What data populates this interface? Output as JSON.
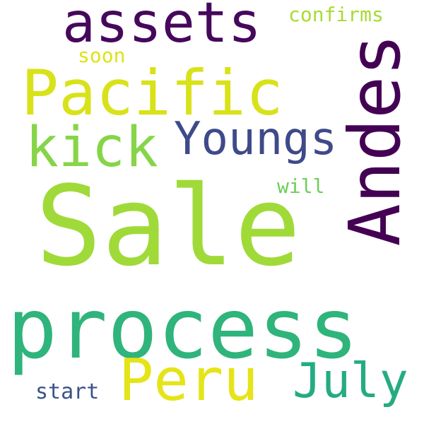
{
  "words": {
    "sale": {
      "text": "Sale",
      "color": "#a0da39"
    },
    "process": {
      "text": "process",
      "color": "#2fb47c"
    },
    "pacific": {
      "text": "Pacific",
      "color": "#d8e219"
    },
    "andes": {
      "text": "Andes",
      "color": "#440154"
    },
    "assets": {
      "text": "assets",
      "color": "#46085c"
    },
    "kick": {
      "text": "kick",
      "color": "#86d549"
    },
    "peru": {
      "text": "Peru",
      "color": "#e5e419"
    },
    "july": {
      "text": "July",
      "color": "#25ab82"
    },
    "youngs": {
      "text": "Youngs",
      "color": "#3e4a89"
    },
    "confirms": {
      "text": "confirms",
      "color": "#a8db34"
    },
    "soon": {
      "text": "soon",
      "color": "#dde318"
    },
    "will": {
      "text": "will",
      "color": "#6ece58"
    },
    "start": {
      "text": "start",
      "color": "#3b528b"
    }
  }
}
